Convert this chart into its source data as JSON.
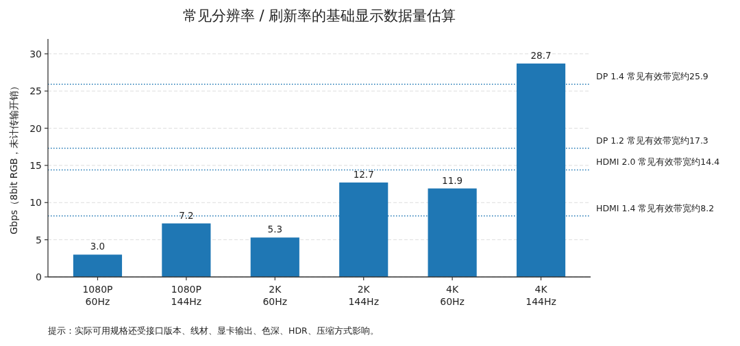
{
  "chart_data": {
    "type": "bar",
    "title": "常见分辨率 / 刷新率的基础显示数据量估算",
    "ylabel": "Gbps（8bit RGB，未计传输开销）",
    "categories": [
      "1080P\n60Hz",
      "1080P\n144Hz",
      "2K\n60Hz",
      "2K\n144Hz",
      "4K\n60Hz",
      "4K\n144Hz"
    ],
    "values": [
      3.0,
      7.2,
      5.3,
      12.7,
      11.9,
      28.7
    ],
    "value_labels": [
      "3.0",
      "7.2",
      "5.3",
      "12.7",
      "11.9",
      "28.7"
    ],
    "color": "#1f77b4",
    "ylim": [
      0,
      32
    ],
    "yticks": [
      0,
      5,
      10,
      15,
      20,
      25,
      30
    ],
    "grid": "y",
    "ref_lines": [
      {
        "axis": "y",
        "value": 25.9,
        "label": "DP 1.4 常见有效带宽约25.9",
        "color": "#1f77b4",
        "line_style": "dotted"
      },
      {
        "axis": "y",
        "value": 17.3,
        "label": "DP 1.2 常见有效带宽约17.3",
        "color": "#1f77b4",
        "line_style": "dotted"
      },
      {
        "axis": "y",
        "value": 14.4,
        "label": "HDMI 2.0 常见有效带宽约14.4",
        "color": "#1f77b4",
        "line_style": "dotted"
      },
      {
        "axis": "y",
        "value": 8.2,
        "label": "HDMI 1.4 常见有效带宽约8.2",
        "color": "#1f77b4",
        "line_style": "dotted"
      }
    ],
    "annotations": [
      "提示：实际可用规格还受接口版本、线材、显卡输出、色深、HDR、压缩方式影响。"
    ]
  }
}
